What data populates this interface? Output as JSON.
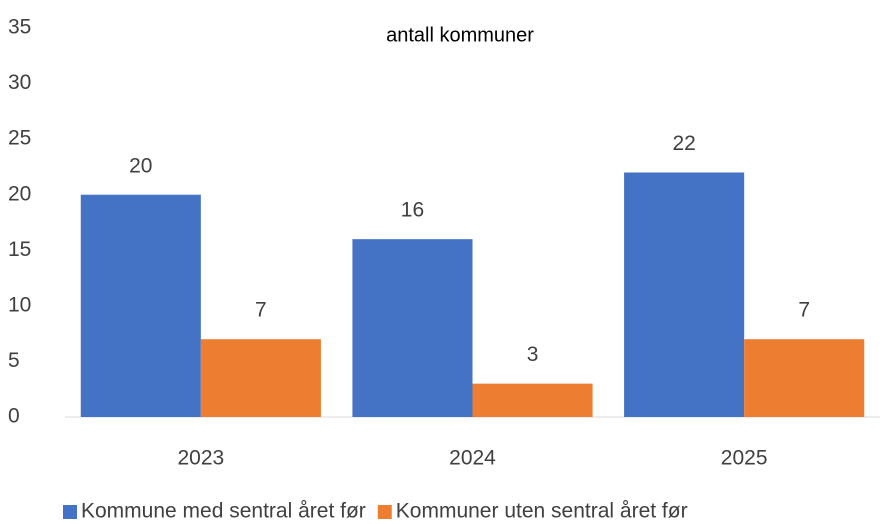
{
  "chart_data": {
    "type": "bar",
    "title": "antall kommuner",
    "categories": [
      "2023",
      "2024",
      "2025"
    ],
    "series": [
      {
        "name": "Kommune med sentral året før",
        "color": "#4472c4",
        "values": [
          20,
          16,
          22
        ]
      },
      {
        "name": "Kommuner uten sentral året før",
        "color": "#ed7d31",
        "values": [
          7,
          3,
          7
        ]
      }
    ],
    "ylim": [
      0,
      35
    ],
    "yticks": [
      0,
      5,
      10,
      15,
      20,
      25,
      30,
      35
    ],
    "grid": false,
    "legend": "bottom"
  }
}
